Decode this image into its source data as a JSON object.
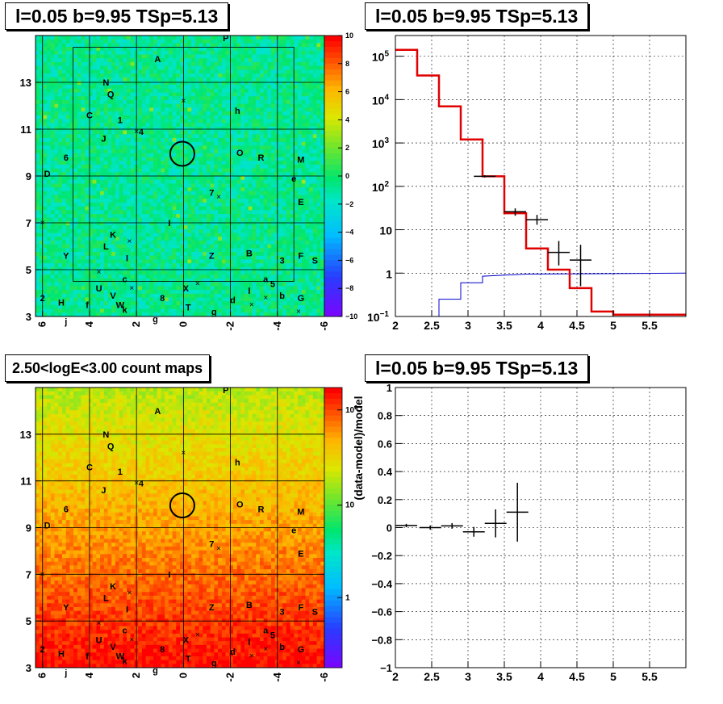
{
  "titles": {
    "top_left": "l=0.05 b=9.95 TSp=5.13",
    "top_right": "l=0.05 b=9.95 TSp=5.13",
    "bottom_left": "2.50<logE<3.00 count maps",
    "bottom_right": "l=0.05 b=9.95 TSp=5.13"
  },
  "chart_data": [
    {
      "id": "residual-ts-map",
      "type": "heatmap",
      "x_ticks": [
        "6",
        "4",
        "2",
        "0",
        "-2",
        "-4",
        "-6"
      ],
      "y_ticks": [
        "3",
        "5",
        "7",
        "9",
        "11",
        "13"
      ],
      "xlim": [
        6.3,
        -6.0
      ],
      "ylim": [
        3.0,
        15.0
      ],
      "colorbar": {
        "range": [
          -10,
          10
        ],
        "ticks": [
          "10",
          "8",
          "6",
          "4",
          "2",
          "0",
          "−2",
          "−4",
          "−6",
          "−8",
          "−10"
        ]
      },
      "sources": [
        {
          "label": "P",
          "x": -1.8,
          "y": 14.9
        },
        {
          "label": "A",
          "x": 1.1,
          "y": 14.0
        },
        {
          "label": "N",
          "x": 3.3,
          "y": 13.0
        },
        {
          "label": "Q",
          "x": 3.1,
          "y": 12.5
        },
        {
          "label": "h",
          "x": -2.3,
          "y": 11.8
        },
        {
          "label": "C",
          "x": 4.0,
          "y": 11.6
        },
        {
          "label": "1",
          "x": 2.7,
          "y": 11.4
        },
        {
          "label": "4",
          "x": 1.8,
          "y": 10.9
        },
        {
          "label": "J",
          "x": 3.4,
          "y": 10.6
        },
        {
          "label": "6",
          "x": 5.0,
          "y": 9.8
        },
        {
          "label": "O",
          "x": -2.4,
          "y": 10.0
        },
        {
          "label": "R",
          "x": -3.3,
          "y": 9.8
        },
        {
          "label": "M",
          "x": -5.0,
          "y": 9.7
        },
        {
          "label": "D",
          "x": 5.8,
          "y": 9.1
        },
        {
          "label": "e",
          "x": -4.7,
          "y": 8.9
        },
        {
          "label": "7",
          "x": -1.2,
          "y": 8.3
        },
        {
          "label": "E",
          "x": -5.0,
          "y": 7.9
        },
        {
          "label": "I",
          "x": 0.6,
          "y": 7.0
        },
        {
          "label": "K",
          "x": 3.0,
          "y": 6.5
        },
        {
          "label": "L",
          "x": 3.3,
          "y": 6.0
        },
        {
          "label": "Y",
          "x": 5.0,
          "y": 5.6
        },
        {
          "label": "I",
          "x": 2.4,
          "y": 5.5
        },
        {
          "label": "Z",
          "x": -1.2,
          "y": 5.6
        },
        {
          "label": "B",
          "x": -2.8,
          "y": 5.7
        },
        {
          "label": "3",
          "x": -4.2,
          "y": 5.4
        },
        {
          "label": "F",
          "x": -5.0,
          "y": 5.6
        },
        {
          "label": "S",
          "x": -5.6,
          "y": 5.4
        },
        {
          "label": "c",
          "x": 2.5,
          "y": 4.6
        },
        {
          "label": "a",
          "x": -3.5,
          "y": 4.6
        },
        {
          "label": "5",
          "x": -3.8,
          "y": 4.4
        },
        {
          "label": "U",
          "x": 3.6,
          "y": 4.2
        },
        {
          "label": "V",
          "x": 3.0,
          "y": 3.9
        },
        {
          "label": "X",
          "x": -0.1,
          "y": 4.2
        },
        {
          "label": "8",
          "x": 0.9,
          "y": 3.8
        },
        {
          "label": "l",
          "x": -2.8,
          "y": 4.1
        },
        {
          "label": "b",
          "x": -4.2,
          "y": 3.9
        },
        {
          "label": "G",
          "x": -5.0,
          "y": 3.8
        },
        {
          "label": "2",
          "x": 6.0,
          "y": 3.8
        },
        {
          "label": "H",
          "x": 5.2,
          "y": 3.6
        },
        {
          "label": "f",
          "x": 4.1,
          "y": 3.5
        },
        {
          "label": "W",
          "x": 2.7,
          "y": 3.5
        },
        {
          "label": "k",
          "x": 2.5,
          "y": 3.3
        },
        {
          "label": "d",
          "x": -2.1,
          "y": 3.7
        },
        {
          "label": "T",
          "x": -0.2,
          "y": 3.4
        },
        {
          "label": "g",
          "x": 1.2,
          "y": 2.9
        },
        {
          "label": "g",
          "x": -1.3,
          "y": 3.2
        },
        {
          "label": "j",
          "x": 5.0,
          "y": 2.8
        }
      ],
      "marker": {
        "x": 0.05,
        "y": 9.95
      }
    },
    {
      "id": "spectrum",
      "type": "line",
      "x_ticks": [
        "2",
        "2.5",
        "3",
        "3.5",
        "4",
        "4.5",
        "5",
        "5.5"
      ],
      "y_ticks": [
        "10^-1",
        "1",
        "10",
        "10^2",
        "10^3",
        "10^4",
        "10^5"
      ],
      "xlim": [
        2.0,
        6.0
      ],
      "ylim": [
        0.1,
        300000
      ],
      "y_scale": "log",
      "grid": true,
      "series": [
        {
          "color": "#e00000",
          "style": "step",
          "edges": [
            2.0,
            2.3,
            2.6,
            2.9,
            3.2,
            3.5,
            3.8,
            4.1,
            4.4,
            4.7,
            5.0,
            6.0
          ],
          "values": [
            140000,
            36000,
            7000,
            1200,
            170,
            24,
            3.7,
            1.2,
            0.45,
            0.13,
            0.11
          ]
        },
        {
          "color": "#0000cc",
          "style": "line",
          "x": [
            2.6,
            2.6,
            2.9,
            2.9,
            3.2,
            3.2,
            3.8,
            6.0
          ],
          "y": [
            0.1,
            0.25,
            0.25,
            0.6,
            0.6,
            0.85,
            0.95,
            1.0
          ]
        }
      ],
      "data_points": [
        {
          "x": 3.23,
          "y": 170,
          "xerr": 0.15,
          "ylo": 160,
          "yhi": 180
        },
        {
          "x": 3.65,
          "y": 26,
          "xerr": 0.15,
          "ylo": 21,
          "yhi": 31
        },
        {
          "x": 3.95,
          "y": 17,
          "xerr": 0.15,
          "ylo": 13,
          "yhi": 22
        },
        {
          "x": 4.25,
          "y": 3.0,
          "xerr": 0.15,
          "ylo": 1.5,
          "yhi": 5.5
        },
        {
          "x": 4.55,
          "y": 2.0,
          "xerr": 0.15,
          "ylo": 0.5,
          "yhi": 4.5
        }
      ]
    },
    {
      "id": "count-map",
      "type": "heatmap",
      "x_ticks": [
        "6",
        "4",
        "2",
        "0",
        "-2",
        "-4",
        "-6"
      ],
      "y_ticks": [
        "3",
        "5",
        "7",
        "9",
        "11",
        "13"
      ],
      "xlim": [
        6.3,
        -6.0
      ],
      "ylim": [
        3.0,
        15.0
      ],
      "colorbar": {
        "scale": "log",
        "ticks": [
          "10^2",
          "10",
          "1"
        ]
      },
      "marker": {
        "x": 0.05,
        "y": 9.95
      }
    },
    {
      "id": "residuals",
      "type": "scatter",
      "ylabel": "(data-model)/model",
      "x_ticks": [
        "2",
        "2.5",
        "3",
        "3.5",
        "4",
        "4.5",
        "5",
        "5.5"
      ],
      "y_ticks": [
        "1",
        "0.8",
        "0.6",
        "0.4",
        "0.2",
        "0",
        "−0.2",
        "−0.4",
        "−0.6",
        "−0.8",
        "−1"
      ],
      "xlim": [
        2.0,
        6.0
      ],
      "ylim": [
        -1.0,
        1.0
      ],
      "grid": true,
      "data_points": [
        {
          "x": 2.15,
          "y": 0.015,
          "xerr": 0.15,
          "yerr": 0.012
        },
        {
          "x": 2.48,
          "y": 0.0,
          "xerr": 0.15,
          "yerr": 0.015
        },
        {
          "x": 2.78,
          "y": 0.012,
          "xerr": 0.15,
          "yerr": 0.02
        },
        {
          "x": 3.08,
          "y": -0.03,
          "xerr": 0.15,
          "yerr": 0.035
        },
        {
          "x": 3.38,
          "y": 0.03,
          "xerr": 0.15,
          "yerr": 0.1
        },
        {
          "x": 3.68,
          "y": 0.11,
          "xerr": 0.15,
          "yerr": 0.21
        }
      ]
    }
  ]
}
